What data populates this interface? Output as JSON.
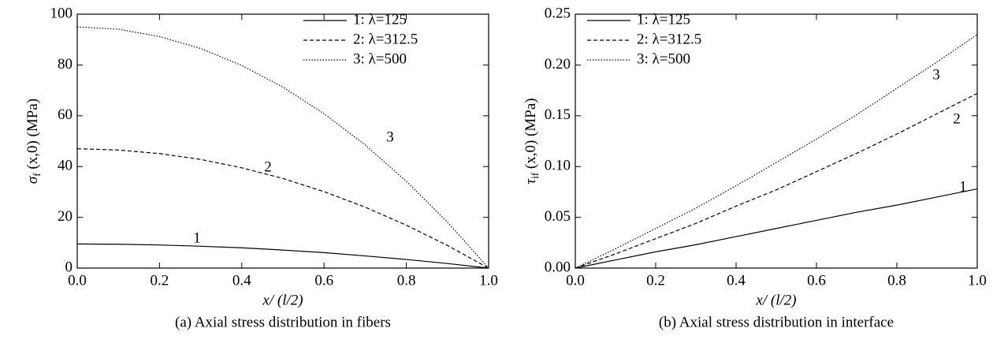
{
  "chart_data": [
    {
      "type": "line",
      "caption": "(a) Axial stress distribution in fibers",
      "xlabel": "x/ (l/2)",
      "ylabel": {
        "symbol": "σ",
        "subscript": "f",
        "rest": " (x,0) (MPa)"
      },
      "x": [
        0,
        0.1,
        0.2,
        0.3,
        0.4,
        0.5,
        0.6,
        0.7,
        0.8,
        0.9,
        1
      ],
      "series": [
        {
          "name": "1: λ=125",
          "color": "#000000",
          "dash": "solid",
          "label": "1",
          "values": [
            9.5,
            9.4,
            9.1,
            8.6,
            8,
            7.1,
            6.1,
            4.8,
            3.4,
            1.8,
            0
          ]
        },
        {
          "name": "2: λ=312.5",
          "color": "#000000",
          "dash": "dashed",
          "label": "2",
          "values": [
            47,
            46.5,
            45.1,
            42.8,
            39.5,
            35.3,
            30.1,
            24,
            16.9,
            8.9,
            0
          ]
        },
        {
          "name": "3: λ=500",
          "color": "#000000",
          "dash": "dotted",
          "label": "3",
          "values": [
            95,
            94.1,
            91.2,
            86.5,
            79.8,
            71.3,
            60.8,
            48.5,
            34.2,
            18.1,
            0
          ]
        }
      ],
      "xlim": [
        0,
        1
      ],
      "xticks": [
        {
          "value": 0,
          "label": "0.0"
        },
        0.2,
        0.4,
        0.6,
        0.8,
        {
          "value": 1,
          "label": "1.0"
        }
      ],
      "ylim": [
        0,
        100
      ],
      "yticks": [
        0,
        20,
        40,
        60,
        80,
        100
      ],
      "legend": "upper right"
    },
    {
      "type": "line",
      "caption": "(b) Axial stress distribution in interface",
      "xlabel": "x/ (l/2)",
      "ylabel": {
        "symbol": "τ",
        "subscript": "if",
        "rest": " (x,0) (MPa)"
      },
      "x": [
        0,
        0.1,
        0.2,
        0.3,
        0.4,
        0.5,
        0.6,
        0.7,
        0.8,
        0.9,
        1
      ],
      "series": [
        {
          "name": "1: λ=125",
          "color": "#000000",
          "dash": "solid",
          "label": "1",
          "values": [
            0,
            0.008,
            0.016,
            0.023,
            0.031,
            0.039,
            0.047,
            0.055,
            0.062,
            0.07,
            0.078
          ]
        },
        {
          "name": "2: λ=312.5",
          "color": "#000000",
          "dash": "dashed",
          "label": "2",
          "values": [
            0,
            0.014,
            0.029,
            0.044,
            0.061,
            0.077,
            0.095,
            0.113,
            0.132,
            0.152,
            0.172
          ]
        },
        {
          "name": "3: λ=500",
          "color": "#000000",
          "dash": "dotted",
          "label": "3",
          "values": [
            0,
            0.019,
            0.039,
            0.059,
            0.081,
            0.104,
            0.127,
            0.151,
            0.177,
            0.203,
            0.23
          ]
        }
      ],
      "xlim": [
        0,
        1
      ],
      "xticks": [
        {
          "value": 0,
          "label": "0.0"
        },
        0.2,
        0.4,
        0.6,
        0.8,
        {
          "value": 1,
          "label": "1.0"
        }
      ],
      "ylim": [
        0,
        0.25
      ],
      "yticks": [
        {
          "value": 0,
          "label": "0.00"
        },
        0.05,
        {
          "value": 0.1,
          "label": "0.10"
        },
        0.15,
        {
          "value": 0.2,
          "label": "0.20"
        },
        0.25
      ],
      "legend": "upper left"
    }
  ]
}
